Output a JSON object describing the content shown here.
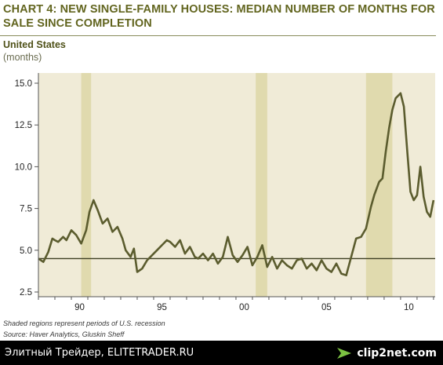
{
  "chart_data": {
    "type": "line",
    "title": "CHART 4: NEW SINGLE-FAMILY HOUSES: MEDIAN NUMBER OF MONTHS FOR SALE SINCE COMPLETION",
    "subtitle": "United States",
    "unit": "(months)",
    "ylim": [
      2.5,
      15.0
    ],
    "yticks": [
      "2.5",
      "5.0",
      "7.5",
      "10.0",
      "12.5",
      "15.0"
    ],
    "xlim": [
      1988.0,
      2012.1
    ],
    "xticks": [
      {
        "x": 1990,
        "label": "90"
      },
      {
        "x": 1995,
        "label": "95"
      },
      {
        "x": 2000,
        "label": "00"
      },
      {
        "x": 2005,
        "label": "05"
      },
      {
        "x": 2010,
        "label": "10"
      }
    ],
    "reference_line": 4.5,
    "recessions": [
      [
        1990.6,
        1991.2
      ],
      [
        2001.2,
        2001.9
      ],
      [
        2007.9,
        2009.5
      ]
    ],
    "grid": false,
    "series": [
      {
        "color": "#5b5c2e",
        "x": [
          1988.0,
          1988.3,
          1988.6,
          1988.85,
          1989.0,
          1989.2,
          1989.5,
          1989.7,
          1990.0,
          1990.3,
          1990.6,
          1990.9,
          1991.1,
          1991.35,
          1991.6,
          1991.9,
          1992.2,
          1992.5,
          1992.8,
          1993.1,
          1993.3,
          1993.6,
          1993.8,
          1994.0,
          1994.3,
          1994.6,
          1994.9,
          1995.2,
          1995.5,
          1995.8,
          1996.0,
          1996.3,
          1996.6,
          1996.9,
          1997.2,
          1997.5,
          1997.7,
          1998.0,
          1998.3,
          1998.6,
          1998.9,
          1999.2,
          1999.5,
          1999.8,
          2000.1,
          2000.4,
          2000.7,
          2001.0,
          2001.3,
          2001.6,
          2001.9,
          2002.2,
          2002.5,
          2002.8,
          2003.1,
          2003.4,
          2003.7,
          2004.0,
          2004.3,
          2004.6,
          2004.9,
          2005.2,
          2005.5,
          2005.8,
          2006.1,
          2006.4,
          2006.7,
          2007.0,
          2007.3,
          2007.6,
          2007.9,
          2008.2,
          2008.4,
          2008.7,
          2008.9,
          2009.1,
          2009.3,
          2009.5,
          2009.7,
          2009.9,
          2010.0,
          2010.2,
          2010.4,
          2010.6,
          2010.8,
          2011.0,
          2011.2,
          2011.4,
          2011.6,
          2011.8,
          2012.0
        ],
        "y": [
          4.5,
          4.3,
          4.9,
          5.7,
          5.6,
          5.5,
          5.8,
          5.6,
          6.2,
          5.9,
          5.4,
          6.2,
          7.3,
          8.0,
          7.4,
          6.6,
          6.9,
          6.1,
          6.4,
          5.7,
          5.0,
          4.6,
          5.1,
          3.7,
          3.9,
          4.4,
          4.7,
          5.0,
          5.3,
          5.6,
          5.5,
          5.2,
          5.6,
          4.8,
          5.2,
          4.6,
          4.5,
          4.8,
          4.4,
          4.8,
          4.2,
          4.6,
          5.8,
          4.7,
          4.3,
          4.7,
          5.2,
          4.1,
          4.6,
          5.3,
          4.0,
          4.6,
          3.9,
          4.4,
          4.1,
          3.9,
          4.4,
          4.5,
          3.9,
          4.2,
          3.8,
          4.4,
          3.9,
          3.7,
          4.2,
          3.6,
          3.5,
          4.6,
          5.7,
          5.8,
          6.3,
          7.6,
          8.3,
          9.1,
          9.3,
          10.9,
          12.3,
          13.4,
          14.1,
          14.3,
          14.4,
          13.6,
          11.0,
          8.5,
          8.0,
          8.3,
          10.0,
          8.2,
          7.3,
          7.0,
          8.0
        ]
      }
    ]
  },
  "notes": {
    "shaded": "Shaded regions represent periods of U.S. recession",
    "source": "Source: Haver Analytics, Gluskin Sheff"
  },
  "footer": {
    "text": "Элитный Трейдер, ELITETRADER.RU",
    "logo": "clip2net.com",
    "logo_icon": "clip2net-arrow-icon",
    "logo_icon_color": "#7cc242"
  }
}
